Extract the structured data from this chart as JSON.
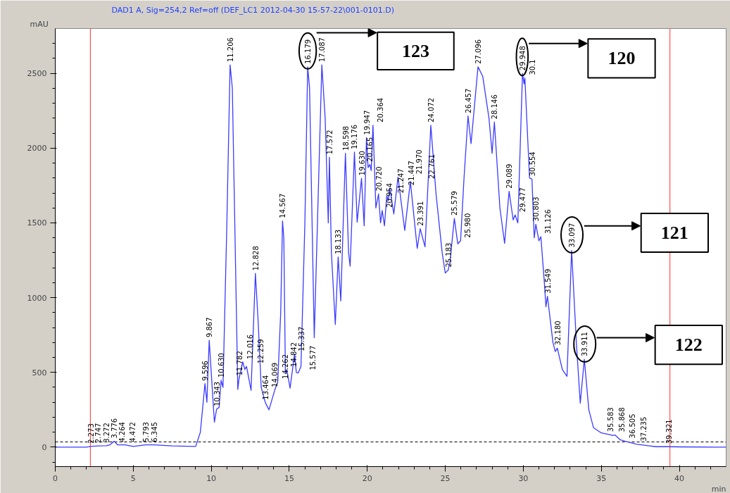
{
  "chart_data": {
    "type": "line",
    "title": "DAD1 A, Sig=254,2 Ref=off (DEF_LC1 2012-04-30 15-57-22\\001-0101.D)",
    "xlabel": "min",
    "ylabel": "mAU",
    "xlim": [
      0,
      43
    ],
    "ylim": [
      -130,
      2800
    ],
    "xticks": [
      0,
      {
        "value": 1,
        "label": null
      },
      {
        "value": 2,
        "label": null
      },
      {
        "value": 3,
        "label": null
      },
      {
        "value": 4,
        "label": null
      },
      5,
      {
        "value": 6,
        "label": null
      },
      {
        "value": 7,
        "label": null
      },
      {
        "value": 8,
        "label": null
      },
      {
        "value": 9,
        "label": null
      },
      10,
      {
        "value": 11,
        "label": null
      },
      {
        "value": 12,
        "label": null
      },
      {
        "value": 13,
        "label": null
      },
      {
        "value": 14,
        "label": null
      },
      15,
      {
        "value": 16,
        "label": null
      },
      {
        "value": 17,
        "label": null
      },
      {
        "value": 18,
        "label": null
      },
      {
        "value": 19,
        "label": null
      },
      20,
      {
        "value": 21,
        "label": null
      },
      {
        "value": 22,
        "label": null
      },
      {
        "value": 23,
        "label": null
      },
      {
        "value": 24,
        "label": null
      },
      25,
      {
        "value": 26,
        "label": null
      },
      {
        "value": 27,
        "label": null
      },
      {
        "value": 28,
        "label": null
      },
      {
        "value": 29,
        "label": null
      },
      30,
      {
        "value": 31,
        "label": null
      },
      {
        "value": 32,
        "label": null
      },
      {
        "value": 33,
        "label": null
      },
      {
        "value": 34,
        "label": null
      },
      35,
      {
        "value": 36,
        "label": null
      },
      {
        "value": 37,
        "label": null
      },
      {
        "value": 38,
        "label": null
      },
      {
        "value": 39,
        "label": null
      },
      40,
      {
        "value": 41,
        "label": null
      },
      {
        "value": 42,
        "label": null
      }
    ],
    "yticks": [
      {
        "value": -100,
        "label": null
      },
      0,
      {
        "value": 100,
        "label": null
      },
      {
        "value": 200,
        "label": null
      },
      {
        "value": 300,
        "label": null
      },
      {
        "value": 400,
        "label": null
      },
      500,
      {
        "value": 600,
        "label": null
      },
      {
        "value": 700,
        "label": null
      },
      {
        "value": 800,
        "label": null
      },
      {
        "value": 900,
        "label": null
      },
      1000,
      {
        "value": 1100,
        "label": null
      },
      {
        "value": 1200,
        "label": null
      },
      {
        "value": 1300,
        "label": null
      },
      {
        "value": 1400,
        "label": null
      },
      1500,
      {
        "value": 1600,
        "label": null
      },
      {
        "value": 1700,
        "label": null
      },
      {
        "value": 1800,
        "label": null
      },
      {
        "value": 1900,
        "label": null
      },
      2000,
      {
        "value": 2100,
        "label": null
      },
      {
        "value": 2200,
        "label": null
      },
      {
        "value": 2300,
        "label": null
      },
      {
        "value": 2400,
        "label": null
      },
      2500,
      {
        "value": 2600,
        "label": null
      },
      {
        "value": 2700,
        "label": null
      }
    ],
    "grid": false,
    "series": [
      {
        "color": "#3b3bff",
        "x": [
          0,
          2.0,
          2.273,
          2.747,
          3.272,
          3.5,
          3.776,
          4.0,
          4.264,
          4.472,
          5.0,
          5.793,
          6.345,
          7.5,
          9.0,
          9.3,
          9.596,
          9.72,
          9.867,
          10.2,
          10.343,
          10.5,
          10.63,
          10.75,
          11.0,
          11.206,
          11.35,
          11.7,
          11.782,
          12.016,
          12.15,
          12.259,
          12.55,
          12.828,
          13.0,
          13.2,
          13.464,
          13.7,
          14.069,
          14.262,
          14.45,
          14.567,
          14.65,
          14.75,
          14.842,
          15.05,
          15.337,
          15.45,
          15.577,
          15.75,
          16.0,
          16.179,
          16.3,
          16.6,
          17.087,
          17.3,
          17.5,
          17.572,
          17.7,
          17.95,
          18.133,
          18.3,
          18.598,
          18.8,
          18.9,
          19.176,
          19.35,
          19.63,
          19.8,
          19.947,
          20.05,
          20.165,
          20.25,
          20.364,
          20.55,
          20.72,
          20.85,
          20.954,
          21.1,
          21.247,
          21.35,
          21.447,
          21.7,
          21.97,
          22.4,
          22.761,
          23.2,
          23.391,
          23.7,
          24.072,
          24.4,
          24.8,
          25.0,
          25.183,
          25.3,
          25.579,
          25.8,
          25.98,
          26.2,
          26.457,
          26.65,
          27.096,
          27.4,
          27.8,
          28.0,
          28.146,
          28.5,
          28.8,
          29.089,
          29.35,
          29.477,
          29.65,
          29.948,
          30.05,
          30.1,
          30.4,
          30.554,
          30.7,
          30.803,
          31.0,
          31.126,
          31.35,
          31.45,
          31.549,
          31.9,
          32.05,
          32.18,
          32.5,
          32.8,
          33.097,
          33.4,
          33.65,
          33.911,
          34.2,
          34.5,
          35.0,
          35.583,
          35.75,
          35.868,
          36.2,
          36.505,
          37.235,
          38.0,
          38.5,
          39.321,
          40.0,
          43.0
        ],
        "values": [
          0,
          0,
          5,
          8,
          10,
          15,
          40,
          15,
          15,
          15,
          5,
          15,
          15,
          8,
          5,
          100,
          425,
          300,
          715,
          167,
          255,
          265,
          447,
          400,
          1500,
          2557,
          2400,
          386,
          460,
          570,
          520,
          540,
          380,
          1162,
          850,
          400,
          298,
          250,
          382,
          438,
          900,
          1513,
          1400,
          500,
          518,
          395,
          623,
          500,
          496,
          540,
          1500,
          2544,
          2400,
          732,
          2557,
          2200,
          1500,
          1939,
          1300,
          820,
          1272,
          978,
          1965,
          1300,
          1210,
          1974,
          1505,
          1798,
          1480,
          2070,
          1870,
          1890,
          1850,
          2153,
          1600,
          1693,
          1500,
          1583,
          1480,
          1680,
          1650,
          1732,
          1560,
          1807,
          1450,
          1776,
          1330,
          1461,
          1340,
          2153,
          1700,
          1300,
          1165,
          1184,
          1240,
          1530,
          1360,
          1381,
          1800,
          2215,
          2030,
          2544,
          2480,
          2200,
          1965,
          2175,
          1600,
          1364,
          1711,
          1520,
          1553,
          1500,
          2500,
          2430,
          2470,
          1800,
          1793,
          1400,
          1491,
          1380,
          1408,
          1100,
          939,
          1009,
          700,
          640,
          662,
          520,
          474,
          1316,
          700,
          294,
          588,
          250,
          130,
          95,
          83,
          78,
          82,
          50,
          40,
          20,
          10,
          3,
          3,
          2,
          0
        ]
      }
    ],
    "ref_lines": [
      {
        "axis": "x",
        "value": 2.25,
        "color": "#ff3030",
        "line_style": "solid"
      },
      {
        "axis": "x",
        "value": 39.4,
        "color": "#ff3030",
        "line_style": "solid"
      },
      {
        "axis": "y",
        "value": 35,
        "color": "#000000",
        "line_style": "dashed"
      }
    ],
    "annotations": [
      {
        "text": "2.273",
        "x": 2.273,
        "y": 5
      },
      {
        "text": "2.747",
        "x": 2.747,
        "y": 8
      },
      {
        "text": "3.272",
        "x": 3.272,
        "y": 10
      },
      {
        "text": "3.776",
        "x": 3.776,
        "y": 40
      },
      {
        "text": "4.264",
        "x": 4.264,
        "y": 15
      },
      {
        "text": "4.472",
        "x": 4.472,
        "y": 15
      },
      {
        "text": "5.793",
        "x": 5.793,
        "y": 15
      },
      {
        "text": "6.345",
        "x": 6.345,
        "y": 15
      },
      {
        "text": "9.596",
        "x": 9.596,
        "y": 425
      },
      {
        "text": "9.867",
        "x": 9.867,
        "y": 715
      },
      {
        "text": "10.343",
        "x": 10.343,
        "y": 255
      },
      {
        "text": "10.630",
        "x": 10.63,
        "y": 447
      },
      {
        "text": "11.206",
        "x": 11.206,
        "y": 2557
      },
      {
        "text": "11.782",
        "x": 11.782,
        "y": 460
      },
      {
        "text": "12.016",
        "x": 12.016,
        "y": 570
      },
      {
        "text": "12.259",
        "x": 12.259,
        "y": 540
      },
      {
        "text": "12.828",
        "x": 12.828,
        "y": 1162
      },
      {
        "text": "13.464",
        "x": 13.464,
        "y": 298
      },
      {
        "text": "14.069",
        "x": 14.069,
        "y": 382
      },
      {
        "text": "14.262",
        "x": 14.262,
        "y": 438
      },
      {
        "text": "14.567",
        "x": 14.567,
        "y": 1513
      },
      {
        "text": "14.842",
        "x": 14.842,
        "y": 518
      },
      {
        "text": "15.337",
        "x": 15.337,
        "y": 623
      },
      {
        "text": "15.577",
        "x": 15.577,
        "y": 496
      },
      {
        "text": "16.179",
        "x": 16.179,
        "y": 2544
      },
      {
        "text": "17.087",
        "x": 17.087,
        "y": 2557
      },
      {
        "text": "17.572",
        "x": 17.572,
        "y": 1939
      },
      {
        "text": "18.133",
        "x": 18.133,
        "y": 1272
      },
      {
        "text": "18.598",
        "x": 18.598,
        "y": 1965
      },
      {
        "text": "19.176",
        "x": 19.176,
        "y": 1974
      },
      {
        "text": "19.630",
        "x": 19.63,
        "y": 1798
      },
      {
        "text": "19.947",
        "x": 19.947,
        "y": 2070
      },
      {
        "text": "20.165",
        "x": 20.165,
        "y": 1890
      },
      {
        "text": "20.364",
        "x": 20.364,
        "y": 2153
      },
      {
        "text": "20.720",
        "x": 20.72,
        "y": 1693
      },
      {
        "text": "20.954",
        "x": 20.954,
        "y": 1583
      },
      {
        "text": "21.247",
        "x": 21.247,
        "y": 1680
      },
      {
        "text": "21.447",
        "x": 21.447,
        "y": 1732
      },
      {
        "text": "21.970",
        "x": 21.97,
        "y": 1807
      },
      {
        "text": "22.761",
        "x": 22.761,
        "y": 1776
      },
      {
        "text": "23.391",
        "x": 23.391,
        "y": 1461
      },
      {
        "text": "24.072",
        "x": 24.072,
        "y": 2153
      },
      {
        "text": "25.183",
        "x": 25.183,
        "y": 1184
      },
      {
        "text": "25.579",
        "x": 25.579,
        "y": 1530
      },
      {
        "text": "25.980",
        "x": 25.98,
        "y": 1381
      },
      {
        "text": "26.457",
        "x": 26.457,
        "y": 2215
      },
      {
        "text": "27.096",
        "x": 27.096,
        "y": 2544
      },
      {
        "text": "28.146",
        "x": 28.146,
        "y": 2175
      },
      {
        "text": "29.089",
        "x": 29.089,
        "y": 1711
      },
      {
        "text": "29.477",
        "x": 29.477,
        "y": 1553
      },
      {
        "text": "29.948",
        "x": 29.948,
        "y": 2500
      },
      {
        "text": "30.1",
        "x": 30.1,
        "y": 2470
      },
      {
        "text": "30.554",
        "x": 30.554,
        "y": 1793
      },
      {
        "text": "30.803",
        "x": 30.803,
        "y": 1491
      },
      {
        "text": "31.126",
        "x": 31.126,
        "y": 1408
      },
      {
        "text": "31.549",
        "x": 31.549,
        "y": 1009
      },
      {
        "text": "32.180",
        "x": 32.18,
        "y": 662
      },
      {
        "text": "33.097",
        "x": 33.097,
        "y": 1316
      },
      {
        "text": "33.911",
        "x": 33.911,
        "y": 588
      },
      {
        "text": "35.583",
        "x": 35.583,
        "y": 83
      },
      {
        "text": "35.868",
        "x": 35.868,
        "y": 82
      },
      {
        "text": "36.505",
        "x": 36.505,
        "y": 40
      },
      {
        "text": "37.235",
        "x": 37.235,
        "y": 20
      },
      {
        "text": "39.321",
        "x": 39.321,
        "y": 3
      },
      "123",
      "120",
      "121",
      "122"
    ]
  }
}
